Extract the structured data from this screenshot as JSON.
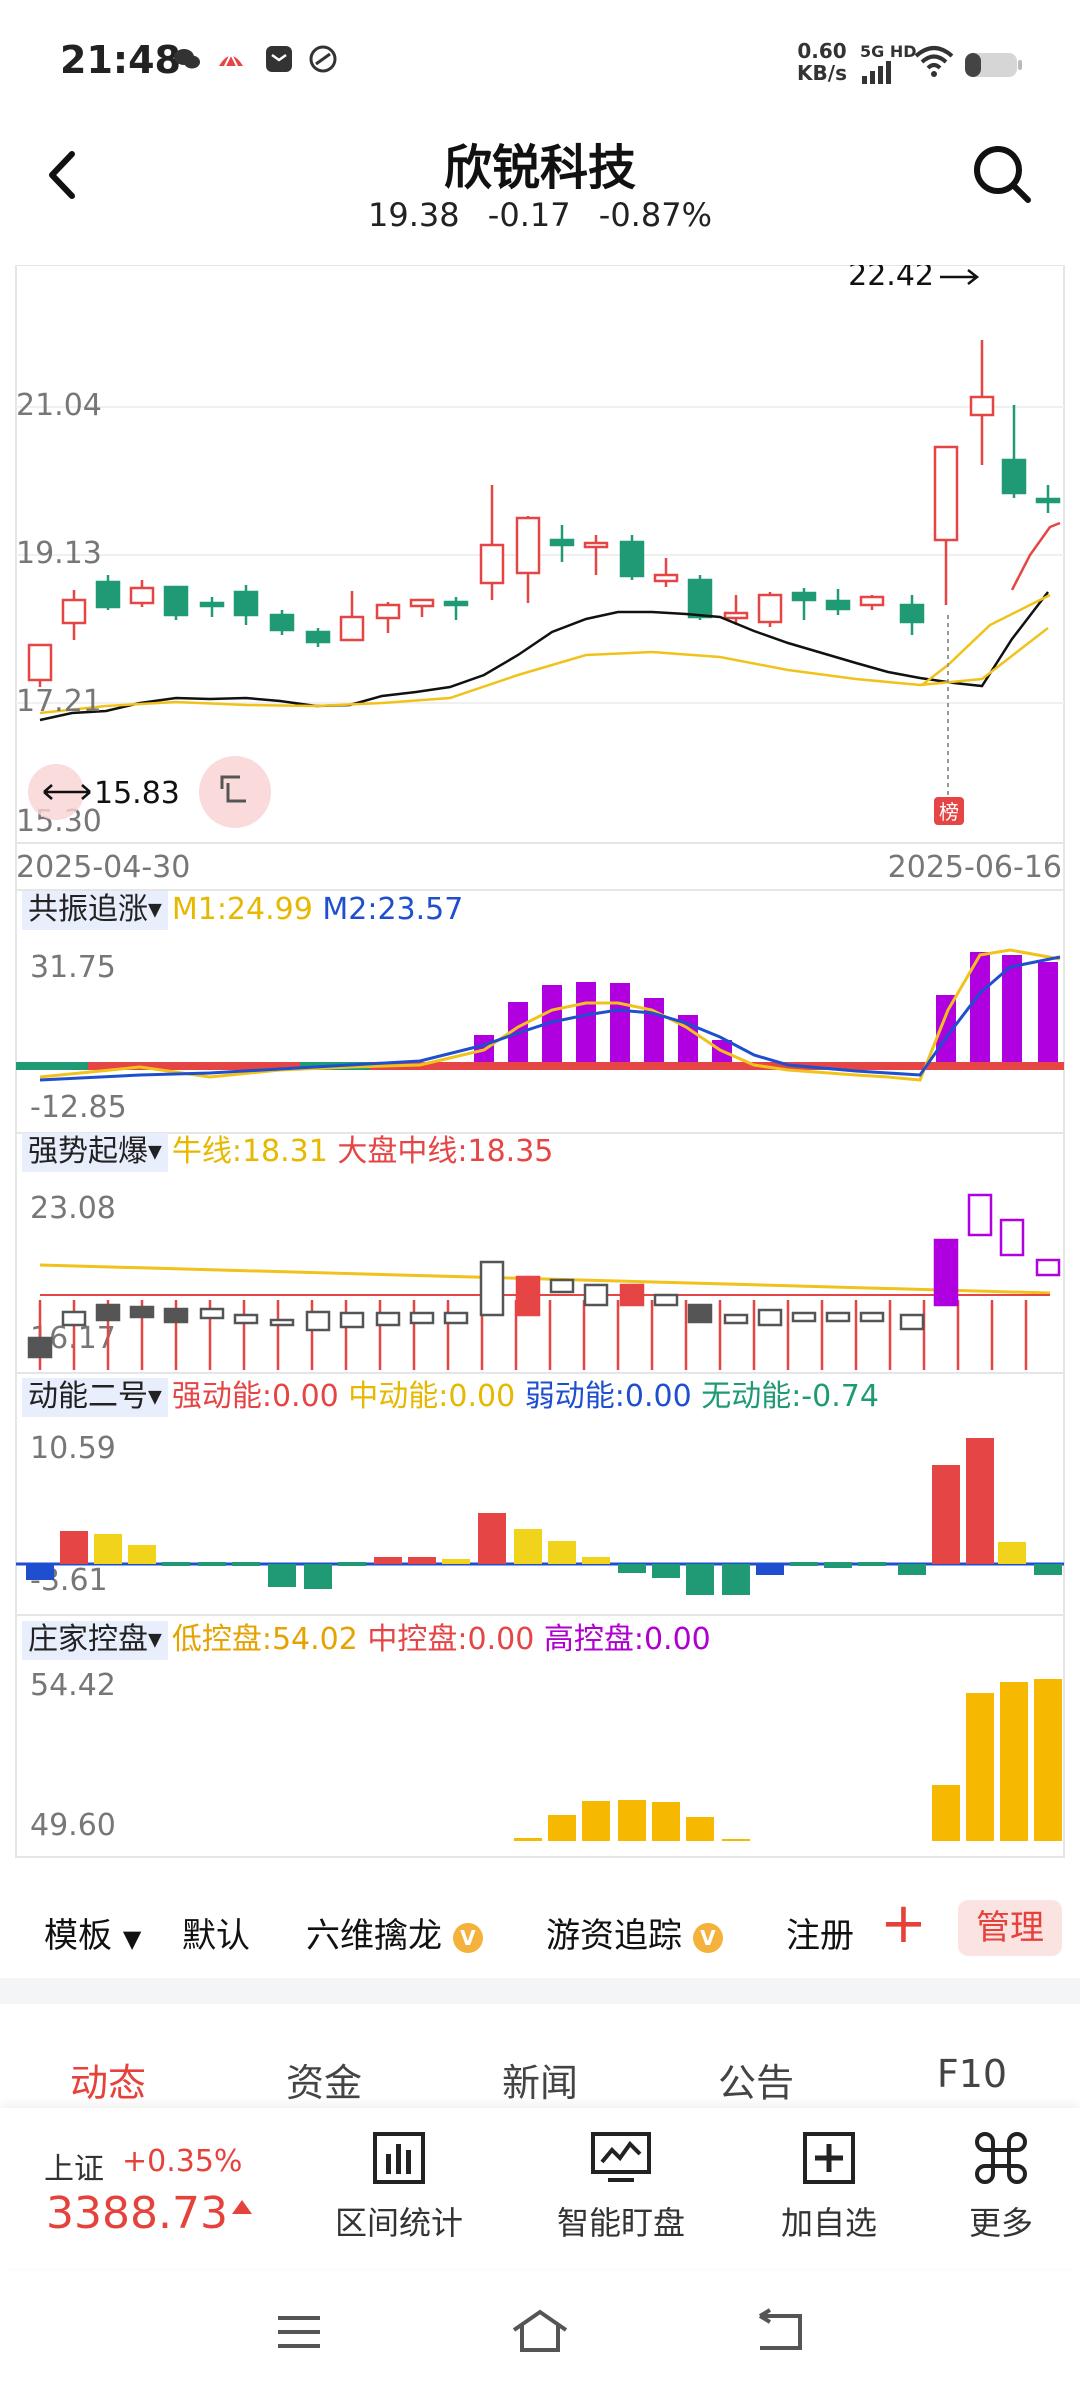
{
  "status_bar": {
    "time": "21:48",
    "net_speed_value": "0.60",
    "net_speed_unit": "KB/s",
    "network": "5G HD",
    "icons": [
      "wechat-icon",
      "app-notify-icon",
      "mail-app-icon",
      "link-app-icon",
      "signal-icon",
      "wifi-icon",
      "battery-icon"
    ]
  },
  "header": {
    "title": "欣锐科技",
    "price": "19.38",
    "change": "-0.17",
    "change_pct": "-0.87%"
  },
  "kline": {
    "max_label": "22.42",
    "y_tick_1": "21.04",
    "y_tick_2": "19.13",
    "y_tick_3": "17.21",
    "y_tick_4": "15.30",
    "min_label": "15.83",
    "date_start": "2025-04-30",
    "date_end": "2025-06-16",
    "marker": "榜",
    "colors": {
      "up": "#e64545",
      "down": "#1f9a74",
      "ma1": "#111111",
      "ma2": "#f1c21b"
    }
  },
  "indicator1": {
    "name": "共振追涨",
    "m1_label": "M1:24.99",
    "m2_label": "M2:23.57",
    "y_top": "31.75",
    "y_bottom": "-12.85"
  },
  "indicator2": {
    "name": "强势起爆",
    "niu_label": "牛线:18.31",
    "dapan_label": "大盘中线:18.35",
    "y_top": "23.08",
    "y_bottom": "16.17"
  },
  "indicator3": {
    "name": "动能二号",
    "strong_label": "强动能:0.00",
    "mid_label": "中动能:0.00",
    "weak_label": "弱动能:0.00",
    "none_label": "无动能:-0.74",
    "y_top": "10.59",
    "y_bottom": "-3.61"
  },
  "indicator4": {
    "name": "庄家控盘",
    "low_label": "低控盘:54.02",
    "mid_label": "中控盘:0.00",
    "high_label": "高控盘:0.00",
    "y_top": "54.42",
    "y_bottom": "49.60"
  },
  "template_bar": {
    "template": "模板",
    "default": "默认",
    "item1": "六维擒龙",
    "item2": "游资追踪",
    "item3": "注册",
    "vip": "V",
    "manage": "管理"
  },
  "tabs": [
    "动态",
    "资金",
    "新闻",
    "公告",
    "F10"
  ],
  "bottom_bar": {
    "index_name": "上证",
    "index_change": "+0.35%",
    "index_value": "3388.73",
    "btn1": "区间统计",
    "btn2": "智能盯盘",
    "btn3": "加自选",
    "btn4": "更多"
  }
}
